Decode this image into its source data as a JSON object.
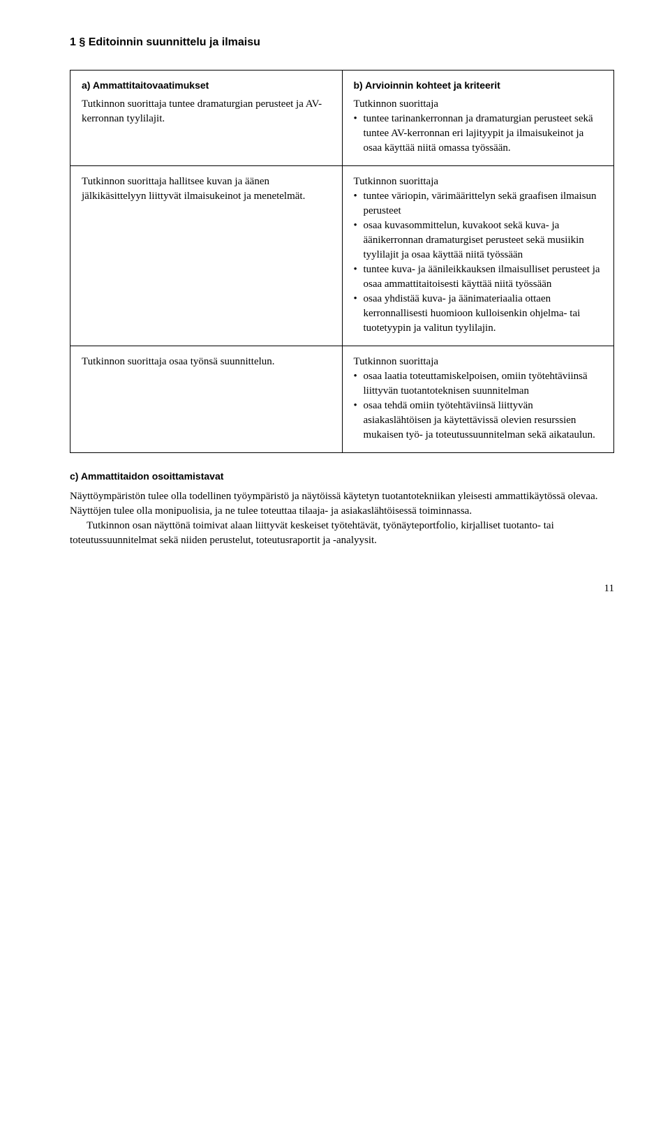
{
  "section": {
    "title": "1 § Editoinnin suunnittelu ja ilmaisu"
  },
  "table": {
    "row1": {
      "left": {
        "heading": "a) Ammattitaitovaatimukset",
        "text": "Tutkinnon suorittaja tuntee dramaturgian perusteet ja AV-kerronnan tyylilajit."
      },
      "right": {
        "heading": "b) Arvioinnin kohteet ja kriteerit",
        "lead": "Tutkinnon suorittaja",
        "items": [
          "tuntee tarinankerronnan ja dramaturgian perusteet sekä tuntee AV-kerronnan eri lajityypit ja ilmaisukeinot ja osaa käyttää niitä omassa työssään."
        ]
      }
    },
    "row2": {
      "left": {
        "text": "Tutkinnon suorittaja hallitsee kuvan ja äänen jälkikäsittelyyn liittyvät ilmaisukeinot ja menetelmät."
      },
      "right": {
        "lead": "Tutkinnon suorittaja",
        "items": [
          "tuntee väriopin, värimäärittelyn sekä graafisen ilmaisun perusteet",
          "osaa kuvasommittelun, kuvakoot sekä kuva- ja äänikerronnan dramaturgiset perusteet sekä musiikin tyylilajit ja osaa käyttää niitä työssään",
          "tuntee kuva- ja äänileikkauksen ilmaisulliset perusteet ja osaa ammattitaitoisesti käyttää niitä työssään",
          "osaa yhdistää kuva- ja äänimateriaalia ottaen kerronnallisesti huomioon kulloisenkin ohjelma- tai tuotetyypin ja valitun tyylilajin."
        ]
      }
    },
    "row3": {
      "left": {
        "text": "Tutkinnon suorittaja osaa työnsä suunnittelun."
      },
      "right": {
        "lead": "Tutkinnon suorittaja",
        "items": [
          "osaa laatia toteuttamiskelpoisen, omiin työtehtäviinsä liittyvän tuotantoteknisen suunnitelman",
          "osaa tehdä omiin työtehtäviinsä liittyvän asiakaslähtöisen ja käytettävissä olevien resurssien mukaisen työ- ja toteutussuunnitelman sekä aikataulun."
        ]
      }
    }
  },
  "subsection_c": {
    "heading": "c) Ammattitaidon osoittamistavat",
    "p1": "Näyttöympäristön tulee olla todellinen työympäristö ja näytöissä käytetyn tuotantotekniikan yleisesti ammattikäytössä olevaa. Näyttöjen tulee olla monipuolisia, ja ne tulee toteuttaa tilaaja- ja asiakaslähtöisessä toiminnassa.",
    "p2": "Tutkinnon osan näyttönä toimivat alaan liittyvät keskeiset työtehtävät, työnäyteportfolio, kirjalliset tuotanto- tai toteutussuunnitelmat sekä niiden perustelut, toteutusraportit ja -analyysit."
  },
  "page_number": "11"
}
